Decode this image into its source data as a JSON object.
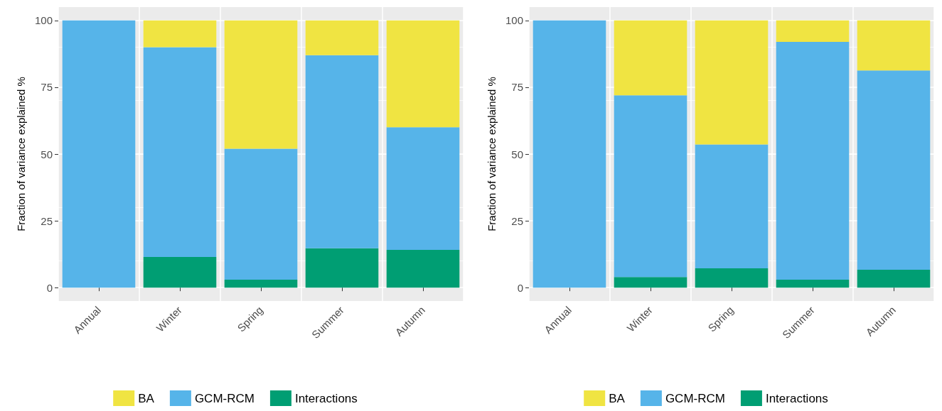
{
  "chart_data": [
    {
      "type": "bar",
      "stacked": true,
      "categories": [
        "Annual",
        "Winter",
        "Spring",
        "Summer",
        "Autumn"
      ],
      "ylabel": "Fraction of variance explained %",
      "ylim": [
        -5,
        105
      ],
      "yticks": [
        0,
        25,
        50,
        75,
        100
      ],
      "grid": true,
      "legend": "bottom",
      "series": [
        {
          "name": "Interactions",
          "color": "#009e73",
          "values": [
            0,
            11.5,
            3,
            14.7,
            14.1
          ]
        },
        {
          "name": "GCM-RCM",
          "color": "#56b4e9",
          "values": [
            100,
            78.5,
            49,
            72.3,
            45.9
          ]
        },
        {
          "name": "BA",
          "color": "#f0e442",
          "values": [
            0,
            10,
            48,
            13,
            40
          ]
        }
      ]
    },
    {
      "type": "bar",
      "stacked": true,
      "categories": [
        "Annual",
        "Winter",
        "Spring",
        "Summer",
        "Autumn"
      ],
      "ylabel": "Fraction of variance explained %",
      "ylim": [
        -5,
        105
      ],
      "yticks": [
        0,
        25,
        50,
        75,
        100
      ],
      "grid": true,
      "legend": "bottom",
      "series": [
        {
          "name": "Interactions",
          "color": "#009e73",
          "values": [
            0,
            4,
            7.2,
            3,
            6.7
          ]
        },
        {
          "name": "GCM-RCM",
          "color": "#56b4e9",
          "values": [
            100,
            68,
            46.4,
            89,
            74.6
          ]
        },
        {
          "name": "BA",
          "color": "#f0e442",
          "values": [
            0,
            28,
            46.4,
            8,
            18.7
          ]
        }
      ]
    }
  ]
}
